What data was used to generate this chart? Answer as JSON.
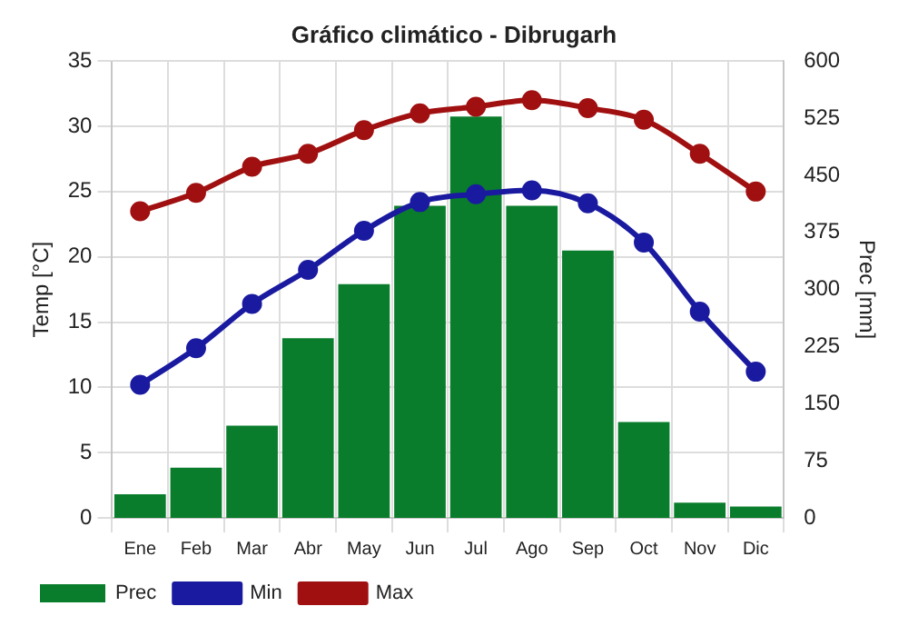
{
  "chart_data": {
    "type": "bar",
    "title": "Gráfico climático - Dibrugarh",
    "ylabel": "Temp [°C]",
    "y2label": "Prec [mm]",
    "categories": [
      "Ene",
      "Feb",
      "Mar",
      "Abr",
      "May",
      "Jun",
      "Jul",
      "Ago",
      "Sep",
      "Oct",
      "Nov",
      "Dic"
    ],
    "series": [
      {
        "name": "Prec",
        "axis": "y2",
        "color": "#0a7d2c",
        "values": [
          31,
          66,
          121,
          236,
          307,
          410,
          527,
          410,
          351,
          126,
          20,
          15
        ]
      },
      {
        "name": "Min",
        "type": "line",
        "color": "#1a1aa0",
        "values": [
          10.2,
          13,
          16.4,
          19,
          22,
          24.2,
          24.8,
          25.1,
          24.1,
          21.1,
          15.8,
          11.2
        ]
      },
      {
        "name": "Max",
        "type": "line",
        "color": "#a01010",
        "values": [
          23.5,
          24.9,
          26.9,
          27.9,
          29.7,
          31,
          31.5,
          32,
          31.4,
          30.5,
          27.9,
          25
        ]
      }
    ],
    "ylim": [
      0,
      35
    ],
    "yticks": [
      0,
      5,
      10,
      15,
      20,
      25,
      30,
      35
    ],
    "y2lim": [
      0,
      600
    ],
    "y2ticks": [
      0,
      75,
      150,
      225,
      300,
      375,
      450,
      525,
      600
    ],
    "grid": true,
    "legend": "bottom",
    "marker": "circle"
  }
}
